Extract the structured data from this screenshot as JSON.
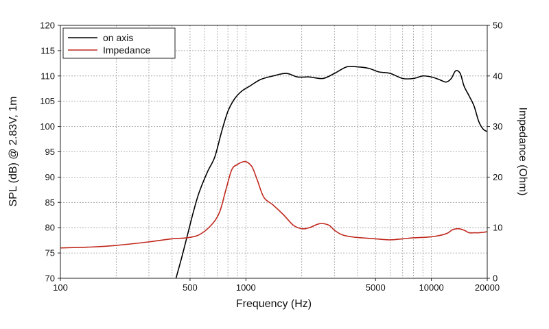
{
  "chart_data": {
    "type": "line",
    "xlabel": "Frequency (Hz)",
    "ylabel": "SPL (dB) @ 2.83V, 1m",
    "y2label": "Impedance (Ohm)",
    "xscale": "log",
    "xlim": [
      100,
      20000
    ],
    "ylim": [
      70,
      120
    ],
    "y2lim": [
      0,
      50
    ],
    "grid": true,
    "legend_position": "top-left",
    "x_ticks": [
      "100",
      "500",
      "1000",
      "5000",
      "10000",
      "20000"
    ],
    "x_tick_values": [
      100,
      500,
      1000,
      5000,
      10000,
      20000
    ],
    "y_ticks": [
      "70",
      "75",
      "80",
      "85",
      "90",
      "95",
      "100",
      "105",
      "110",
      "115",
      "120"
    ],
    "y_tick_values": [
      70,
      75,
      80,
      85,
      90,
      95,
      100,
      105,
      110,
      115,
      120
    ],
    "y2_ticks": [
      "0",
      "10",
      "20",
      "30",
      "40",
      "50"
    ],
    "y2_tick_values": [
      0,
      10,
      20,
      30,
      40,
      50
    ],
    "series": [
      {
        "name": "on axis",
        "color": "#000000",
        "axis": "left",
        "x": [
          420,
          450,
          480,
          520,
          560,
          620,
          680,
          740,
          800,
          870,
          950,
          1050,
          1200,
          1400,
          1650,
          1900,
          2200,
          2600,
          3000,
          3500,
          4000,
          4600,
          5200,
          6000,
          7000,
          8000,
          9000,
          10000,
          11000,
          12000,
          12800,
          13500,
          14300,
          15000,
          16000,
          17000,
          18000,
          19000,
          20000
        ],
        "y": [
          70,
          74,
          78,
          83,
          87,
          91,
          94,
          99,
          103,
          105.5,
          107,
          108,
          109.3,
          110,
          110.5,
          109.8,
          109.8,
          109.5,
          110.5,
          111.8,
          111.8,
          111.5,
          110.8,
          110.5,
          109.5,
          109.5,
          110,
          109.8,
          109.3,
          108.8,
          109.5,
          111,
          110.5,
          108,
          106,
          104,
          101,
          99.5,
          99
        ]
      },
      {
        "name": "Impedance",
        "color": "#c0281c",
        "axis": "right",
        "x": [
          100,
          150,
          200,
          300,
          400,
          480,
          560,
          650,
          720,
          780,
          840,
          900,
          960,
          1010,
          1080,
          1150,
          1250,
          1400,
          1600,
          1800,
          2000,
          2200,
          2500,
          2800,
          3000,
          3300,
          3700,
          4200,
          5000,
          6000,
          7000,
          8000,
          10000,
          12000,
          13000,
          14000,
          15000,
          16000,
          17000,
          18000,
          20000
        ],
        "y": [
          6,
          6.2,
          6.5,
          7.2,
          7.8,
          8,
          8.6,
          10.5,
          13,
          17.5,
          21.5,
          22.5,
          23,
          23,
          22,
          19.5,
          16,
          14.5,
          12.5,
          10.5,
          9.8,
          10,
          10.8,
          10.5,
          9.5,
          8.6,
          8.2,
          8,
          7.8,
          7.6,
          7.8,
          8,
          8.2,
          8.8,
          9.6,
          9.8,
          9.5,
          9,
          9,
          9,
          9.2
        ]
      }
    ]
  }
}
